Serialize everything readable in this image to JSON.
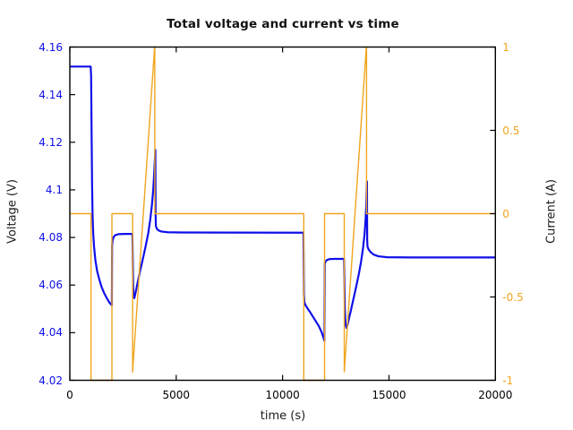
{
  "figure": {
    "title": "Total voltage and current vs time",
    "xlabel": "time (s)",
    "ylabel_left": "Voltage (V)",
    "ylabel_right": "Current (A)",
    "background": "#ffffff",
    "axis_color": "#000000",
    "voltage_color": "#0f0fe8",
    "current_color": "#f0a51d"
  },
  "chart_data": {
    "type": "line",
    "title": "Total voltage and current vs time",
    "xlabel": "time (s)",
    "ylabel_left": "Voltage (V)",
    "ylabel_right": "Current (A)",
    "x_range": [
      0,
      20000
    ],
    "y_left_range": [
      4.02,
      4.16
    ],
    "y_right_range": [
      -1,
      1
    ],
    "x_ticks": [
      0,
      5000,
      10000,
      15000,
      20000
    ],
    "x_tick_labels": [
      "0",
      "5000",
      "10000",
      "15000",
      "20000"
    ],
    "y_left_ticks": [
      4.02,
      4.04,
      4.06,
      4.08,
      4.1,
      4.12,
      4.14,
      4.16
    ],
    "y_left_tick_labels": [
      "4.02",
      "4.04",
      "4.06",
      "4.08",
      "4.1",
      "4.12",
      "4.14",
      "4.16"
    ],
    "y_right_ticks": [
      1,
      0.5,
      0,
      -0.5,
      -1
    ],
    "y_right_tick_labels": [
      "1",
      "0.5",
      "0",
      "-0.5",
      "-1"
    ],
    "grid": false,
    "legend": null,
    "series": [
      {
        "name": "voltage",
        "axis": "left",
        "color": "#0f0fe8",
        "width": 2.2,
        "points": [
          [
            0,
            4.1518
          ],
          [
            980,
            4.1518
          ],
          [
            1000,
            4.148
          ],
          [
            1010,
            4.138
          ],
          [
            1025,
            4.122
          ],
          [
            1045,
            4.103
          ],
          [
            1070,
            4.089
          ],
          [
            1100,
            4.0815
          ],
          [
            1140,
            4.076
          ],
          [
            1200,
            4.0705
          ],
          [
            1280,
            4.066
          ],
          [
            1380,
            4.0625
          ],
          [
            1500,
            4.059
          ],
          [
            1620,
            4.0565
          ],
          [
            1750,
            4.0543
          ],
          [
            1870,
            4.0525
          ],
          [
            1975,
            4.0515
          ],
          [
            1985,
            4.0765
          ],
          [
            2010,
            4.0788
          ],
          [
            2060,
            4.0802
          ],
          [
            2140,
            4.081
          ],
          [
            2300,
            4.0814
          ],
          [
            2600,
            4.0815
          ],
          [
            2940,
            4.0815
          ],
          [
            2955,
            4.072
          ],
          [
            2975,
            4.06
          ],
          [
            3000,
            4.0553
          ],
          [
            3030,
            4.0545
          ],
          [
            3070,
            4.056
          ],
          [
            3150,
            4.0595
          ],
          [
            3280,
            4.065
          ],
          [
            3420,
            4.0705
          ],
          [
            3560,
            4.0762
          ],
          [
            3680,
            4.0815
          ],
          [
            3780,
            4.0875
          ],
          [
            3860,
            4.0938
          ],
          [
            3920,
            4.1
          ],
          [
            3970,
            4.108
          ],
          [
            4005,
            4.1145
          ],
          [
            4020,
            4.1168
          ],
          [
            4030,
            4.09
          ],
          [
            4045,
            4.0848
          ],
          [
            4080,
            4.0838
          ],
          [
            4160,
            4.083
          ],
          [
            4300,
            4.0825
          ],
          [
            4600,
            4.0822
          ],
          [
            5200,
            4.0821
          ],
          [
            10980,
            4.082
          ],
          [
            11000,
            4.056
          ],
          [
            11020,
            4.053
          ],
          [
            11060,
            4.0518
          ],
          [
            11150,
            4.0505
          ],
          [
            11280,
            4.0488
          ],
          [
            11420,
            4.0468
          ],
          [
            11560,
            4.0448
          ],
          [
            11700,
            4.0428
          ],
          [
            11820,
            4.0405
          ],
          [
            11910,
            4.0382
          ],
          [
            11965,
            4.0366
          ],
          [
            11980,
            4.0688
          ],
          [
            12010,
            4.0698
          ],
          [
            12080,
            4.0705
          ],
          [
            12200,
            4.0709
          ],
          [
            12400,
            4.071
          ],
          [
            12890,
            4.071
          ],
          [
            12905,
            4.062
          ],
          [
            12925,
            4.05
          ],
          [
            12960,
            4.0435
          ],
          [
            13000,
            4.042
          ],
          [
            13040,
            4.0428
          ],
          [
            13100,
            4.0452
          ],
          [
            13200,
            4.049
          ],
          [
            13320,
            4.0538
          ],
          [
            13450,
            4.059
          ],
          [
            13580,
            4.0645
          ],
          [
            13690,
            4.07
          ],
          [
            13780,
            4.0755
          ],
          [
            13850,
            4.0812
          ],
          [
            13900,
            4.0875
          ],
          [
            13935,
            4.0945
          ],
          [
            13955,
            4.1015
          ],
          [
            13965,
            4.1035
          ],
          [
            13975,
            4.079
          ],
          [
            13990,
            4.0762
          ],
          [
            14030,
            4.0752
          ],
          [
            14120,
            4.074
          ],
          [
            14280,
            4.0728
          ],
          [
            14500,
            4.0721
          ],
          [
            14900,
            4.0717
          ],
          [
            16000,
            4.0716
          ],
          [
            20000,
            4.0716
          ]
        ]
      },
      {
        "name": "current",
        "axis": "right",
        "color": "#f0a51d",
        "width": 1.4,
        "points": [
          [
            0,
            0
          ],
          [
            995,
            0
          ],
          [
            995,
            -1
          ],
          [
            1978,
            -1
          ],
          [
            1978,
            0
          ],
          [
            2950,
            0
          ],
          [
            2950,
            -0.95
          ],
          [
            3985,
            1
          ],
          [
            3993,
            1
          ],
          [
            3993,
            0
          ],
          [
            10995,
            0
          ],
          [
            10995,
            -1
          ],
          [
            11972,
            -1
          ],
          [
            11972,
            0
          ],
          [
            12898,
            0
          ],
          [
            12898,
            -0.95
          ],
          [
            13935,
            1
          ],
          [
            13945,
            1
          ],
          [
            13945,
            0
          ],
          [
            20000,
            0
          ]
        ]
      }
    ]
  }
}
